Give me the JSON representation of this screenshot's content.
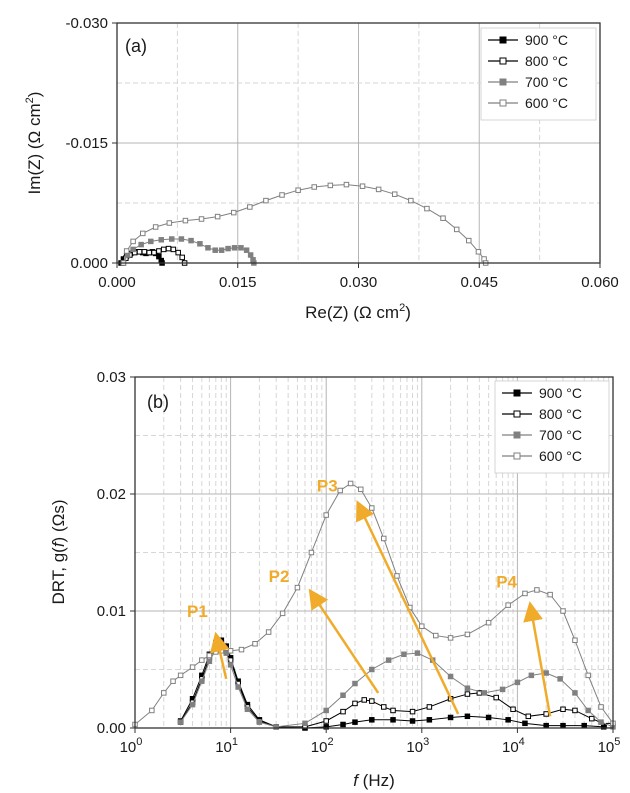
{
  "chart_data": [
    {
      "type": "scatter",
      "panel_label": "(a)",
      "xlabel_main": "Re(Z) (Ω cm",
      "xlabel_sup": "2",
      "xlabel_end": ")",
      "ylabel_main": "Im(Z) (Ω cm",
      "ylabel_sup": "2",
      "ylabel_end": ")",
      "xlim": [
        0,
        0.06
      ],
      "ylim": [
        0,
        -0.03
      ],
      "y_inverted": true,
      "grid": true,
      "legend_position": "top-right",
      "x_ticks": [
        {
          "value": 0,
          "label": "0.000"
        },
        {
          "value": 0.015,
          "label": "0.015"
        },
        {
          "value": 0.03,
          "label": "0.030"
        },
        {
          "value": 0.045,
          "label": "0.045"
        },
        {
          "value": 0.06,
          "label": "0.060"
        }
      ],
      "y_ticks": [
        {
          "value": 0,
          "label": "0.000"
        },
        {
          "value": -0.015,
          "label": "-0.015"
        },
        {
          "value": -0.03,
          "label": "-0.030"
        }
      ],
      "series": [
        {
          "name": "900 °C",
          "marker": "filled-square",
          "color": "#000000",
          "points": [
            [
              0.0005,
              0
            ],
            [
              0.0008,
              -0.0005
            ],
            [
              0.0012,
              -0.0009
            ],
            [
              0.0017,
              -0.0012
            ],
            [
              0.0022,
              -0.0014
            ],
            [
              0.0027,
              -0.0014
            ],
            [
              0.0032,
              -0.0013
            ],
            [
              0.0036,
              -0.0012
            ],
            [
              0.004,
              -0.0013
            ],
            [
              0.0044,
              -0.0014
            ],
            [
              0.0048,
              -0.0012
            ],
            [
              0.0052,
              -0.0008
            ],
            [
              0.0055,
              -0.0003
            ],
            [
              0.0056,
              0
            ]
          ]
        },
        {
          "name": "800 °C",
          "marker": "open-square",
          "color": "#000000",
          "points": [
            [
              0.0007,
              0
            ],
            [
              0.0011,
              -0.0006
            ],
            [
              0.0016,
              -0.001
            ],
            [
              0.0022,
              -0.0013
            ],
            [
              0.0028,
              -0.0014
            ],
            [
              0.0034,
              -0.0014
            ],
            [
              0.004,
              -0.0013
            ],
            [
              0.0046,
              -0.0013
            ],
            [
              0.0052,
              -0.0015
            ],
            [
              0.0058,
              -0.0017
            ],
            [
              0.0064,
              -0.0018
            ],
            [
              0.007,
              -0.0017
            ],
            [
              0.0076,
              -0.0013
            ],
            [
              0.0081,
              -0.0007
            ],
            [
              0.0084,
              0
            ]
          ]
        },
        {
          "name": "700 °C",
          "marker": "filled-square",
          "color": "#808080",
          "points": [
            [
              0.0008,
              0
            ],
            [
              0.0013,
              -0.001
            ],
            [
              0.002,
              -0.0017
            ],
            [
              0.003,
              -0.0023
            ],
            [
              0.0042,
              -0.0027
            ],
            [
              0.0055,
              -0.0029
            ],
            [
              0.0068,
              -0.003
            ],
            [
              0.008,
              -0.003
            ],
            [
              0.0092,
              -0.0028
            ],
            [
              0.0103,
              -0.0024
            ],
            [
              0.0113,
              -0.0019
            ],
            [
              0.0122,
              -0.0016
            ],
            [
              0.013,
              -0.0016
            ],
            [
              0.0138,
              -0.0018
            ],
            [
              0.0146,
              -0.0019
            ],
            [
              0.0154,
              -0.0019
            ],
            [
              0.0161,
              -0.0016
            ],
            [
              0.0166,
              -0.001
            ],
            [
              0.0169,
              -0.0004
            ],
            [
              0.017,
              0
            ]
          ]
        },
        {
          "name": "600 °C",
          "marker": "open-square",
          "color": "#808080",
          "points": [
            [
              0.0008,
              0
            ],
            [
              0.0012,
              -0.0015
            ],
            [
              0.002,
              -0.0027
            ],
            [
              0.0032,
              -0.0037
            ],
            [
              0.0048,
              -0.0045
            ],
            [
              0.0065,
              -0.005
            ],
            [
              0.0085,
              -0.0053
            ],
            [
              0.0105,
              -0.0055
            ],
            [
              0.0125,
              -0.0058
            ],
            [
              0.0145,
              -0.0063
            ],
            [
              0.0165,
              -0.007
            ],
            [
              0.0185,
              -0.0078
            ],
            [
              0.0205,
              -0.0085
            ],
            [
              0.0225,
              -0.0091
            ],
            [
              0.0245,
              -0.0095
            ],
            [
              0.0265,
              -0.0097
            ],
            [
              0.0285,
              -0.0098
            ],
            [
              0.0305,
              -0.0096
            ],
            [
              0.0325,
              -0.0092
            ],
            [
              0.0345,
              -0.0086
            ],
            [
              0.0365,
              -0.0078
            ],
            [
              0.0385,
              -0.0068
            ],
            [
              0.0405,
              -0.0056
            ],
            [
              0.0422,
              -0.0042
            ],
            [
              0.0437,
              -0.0028
            ],
            [
              0.0449,
              -0.0014
            ],
            [
              0.0456,
              -0.0005
            ],
            [
              0.0458,
              0
            ]
          ]
        }
      ]
    },
    {
      "type": "line",
      "panel_label": "(b)",
      "xlabel_italic": "f",
      "xlabel_rest": " (Hz)",
      "ylabel_pre": "DRT, g(",
      "ylabel_italic": "f",
      "ylabel_post": ") (Ωs)",
      "x_scale": "log",
      "xlim": [
        1,
        100000
      ],
      "ylim": [
        0,
        0.03
      ],
      "grid": true,
      "legend_position": "top-right",
      "x_ticks": [
        {
          "value": 1,
          "base": "10",
          "exp": "0"
        },
        {
          "value": 10,
          "base": "10",
          "exp": "1"
        },
        {
          "value": 100,
          "base": "10",
          "exp": "2"
        },
        {
          "value": 1000,
          "base": "10",
          "exp": "3"
        },
        {
          "value": 10000,
          "base": "10",
          "exp": "4"
        },
        {
          "value": 100000,
          "base": "10",
          "exp": "5"
        }
      ],
      "y_ticks": [
        {
          "value": 0,
          "label": "0.00"
        },
        {
          "value": 0.01,
          "label": "0.01"
        },
        {
          "value": 0.02,
          "label": "0.02"
        },
        {
          "value": 0.03,
          "label": "0.03"
        }
      ],
      "series": [
        {
          "name": "900 °C",
          "marker": "filled-square",
          "color": "#000000",
          "points": [
            [
              3,
              0.0006
            ],
            [
              4,
              0.0025
            ],
            [
              5,
              0.0045
            ],
            [
              6,
              0.0063
            ],
            [
              7,
              0.0073
            ],
            [
              8,
              0.0075
            ],
            [
              9,
              0.007
            ],
            [
              10,
              0.006
            ],
            [
              12,
              0.004
            ],
            [
              15,
              0.002
            ],
            [
              20,
              0.0007
            ],
            [
              30,
              0.0001
            ],
            [
              60,
              0.0
            ],
            [
              100,
              0.0001
            ],
            [
              150,
              0.0003
            ],
            [
              200,
              0.0005
            ],
            [
              300,
              0.0007
            ],
            [
              500,
              0.0007
            ],
            [
              800,
              0.0006
            ],
            [
              1200,
              0.0007
            ],
            [
              2000,
              0.0009
            ],
            [
              3000,
              0.001
            ],
            [
              5000,
              0.0009
            ],
            [
              8000,
              0.0007
            ],
            [
              12000,
              0.0004
            ],
            [
              20000,
              0.0002
            ],
            [
              30000,
              0.0002
            ],
            [
              50000,
              0.0002
            ],
            [
              80000,
              0.0001
            ]
          ]
        },
        {
          "name": "800 °C",
          "marker": "open-square",
          "color": "#000000",
          "points": [
            [
              3,
              0.0005
            ],
            [
              4,
              0.0022
            ],
            [
              5,
              0.0042
            ],
            [
              6,
              0.006
            ],
            [
              7,
              0.0071
            ],
            [
              8,
              0.0073
            ],
            [
              9,
              0.0068
            ],
            [
              10,
              0.0058
            ],
            [
              12,
              0.0038
            ],
            [
              15,
              0.0018
            ],
            [
              20,
              0.0006
            ],
            [
              30,
              0.0001
            ],
            [
              60,
              0.0001
            ],
            [
              100,
              0.0006
            ],
            [
              150,
              0.0014
            ],
            [
              200,
              0.0021
            ],
            [
              250,
              0.0024
            ],
            [
              300,
              0.0023
            ],
            [
              400,
              0.0018
            ],
            [
              500,
              0.0015
            ],
            [
              800,
              0.0014
            ],
            [
              1200,
              0.0018
            ],
            [
              2000,
              0.0025
            ],
            [
              3000,
              0.0029
            ],
            [
              4000,
              0.003
            ],
            [
              6000,
              0.0026
            ],
            [
              9000,
              0.0016
            ],
            [
              13000,
              0.001
            ],
            [
              20000,
              0.0012
            ],
            [
              30000,
              0.0016
            ],
            [
              40000,
              0.0015
            ],
            [
              60000,
              0.0008
            ],
            [
              90000,
              0.0002
            ]
          ]
        },
        {
          "name": "700 °C",
          "marker": "filled-square",
          "color": "#808080",
          "points": [
            [
              3,
              0.0005
            ],
            [
              4,
              0.002
            ],
            [
              5,
              0.004
            ],
            [
              6,
              0.0057
            ],
            [
              7,
              0.0067
            ],
            [
              8,
              0.0069
            ],
            [
              9,
              0.0064
            ],
            [
              10,
              0.0054
            ],
            [
              12,
              0.0035
            ],
            [
              15,
              0.0016
            ],
            [
              20,
              0.0005
            ],
            [
              30,
              0.0001
            ],
            [
              60,
              0.0004
            ],
            [
              100,
              0.0015
            ],
            [
              150,
              0.0028
            ],
            [
              200,
              0.0038
            ],
            [
              300,
              0.005
            ],
            [
              450,
              0.0058
            ],
            [
              650,
              0.0063
            ],
            [
              900,
              0.0064
            ],
            [
              1300,
              0.0058
            ],
            [
              2000,
              0.0044
            ],
            [
              3000,
              0.0034
            ],
            [
              4500,
              0.003
            ],
            [
              7000,
              0.0033
            ],
            [
              10000,
              0.0039
            ],
            [
              14000,
              0.0045
            ],
            [
              20000,
              0.0047
            ],
            [
              28000,
              0.0042
            ],
            [
              40000,
              0.003
            ],
            [
              55000,
              0.0015
            ],
            [
              75000,
              0.0005
            ],
            [
              100000,
              0.0001
            ]
          ]
        },
        {
          "name": "600 °C",
          "marker": "open-square",
          "color": "#808080",
          "points": [
            [
              1,
              0.0003
            ],
            [
              1.5,
              0.0015
            ],
            [
              2,
              0.003
            ],
            [
              2.5,
              0.004
            ],
            [
              3,
              0.0045
            ],
            [
              4,
              0.0052
            ],
            [
              5,
              0.0058
            ],
            [
              6,
              0.0062
            ],
            [
              7,
              0.0065
            ],
            [
              8,
              0.0066
            ],
            [
              10,
              0.0066
            ],
            [
              13,
              0.0067
            ],
            [
              18,
              0.0072
            ],
            [
              25,
              0.0082
            ],
            [
              35,
              0.0098
            ],
            [
              50,
              0.012
            ],
            [
              70,
              0.015
            ],
            [
              100,
              0.0182
            ],
            [
              140,
              0.0203
            ],
            [
              180,
              0.0209
            ],
            [
              230,
              0.0204
            ],
            [
              300,
              0.0188
            ],
            [
              400,
              0.0162
            ],
            [
              550,
              0.013
            ],
            [
              750,
              0.0103
            ],
            [
              1000,
              0.0087
            ],
            [
              1400,
              0.0079
            ],
            [
              2000,
              0.0077
            ],
            [
              3000,
              0.008
            ],
            [
              5000,
              0.009
            ],
            [
              8000,
              0.0105
            ],
            [
              12000,
              0.0115
            ],
            [
              16000,
              0.0118
            ],
            [
              22000,
              0.0114
            ],
            [
              30000,
              0.01
            ],
            [
              40000,
              0.0075
            ],
            [
              55000,
              0.0045
            ],
            [
              75000,
              0.0018
            ],
            [
              100000,
              0.0004
            ]
          ]
        }
      ],
      "annotations": [
        {
          "label": "P1",
          "text_at": [
            3.5,
            0.0095
          ],
          "arrow_from": [
            9,
            0.0042
          ],
          "arrow_to": [
            7.3,
            0.0074
          ]
        },
        {
          "label": "P2",
          "text_at": [
            25,
            0.0125
          ],
          "arrow_from": [
            350,
            0.003
          ],
          "arrow_to": [
            75,
            0.0112
          ]
        },
        {
          "label": "P3",
          "text_at": [
            80,
            0.0202
          ],
          "arrow_from": [
            2400,
            0.0012
          ],
          "arrow_to": [
            230,
            0.0187
          ]
        },
        {
          "label": "P4",
          "text_at": [
            6000,
            0.012
          ],
          "arrow_from": [
            22000,
            0.001
          ],
          "arrow_to": [
            14000,
            0.01
          ]
        }
      ]
    }
  ]
}
